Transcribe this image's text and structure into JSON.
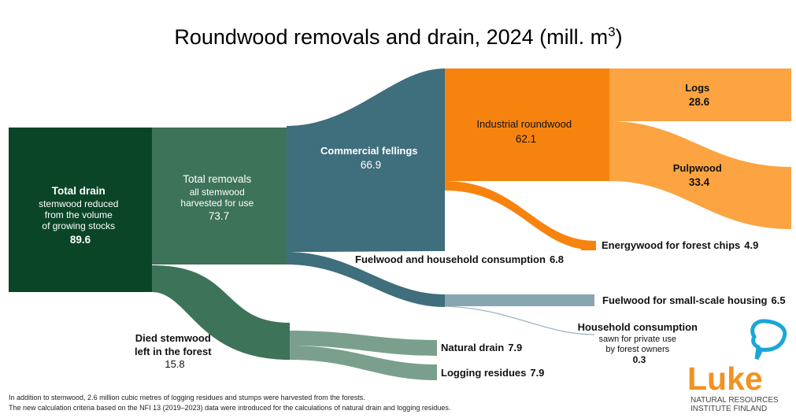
{
  "title": "Roundwood removals and drain, 2024 (mill. m",
  "title_superscript": "3",
  "title_close": ")",
  "nodes": {
    "total_drain": {
      "label": "Total drain",
      "desc": [
        "stemwood reduced",
        "from the volume",
        "of growing stocks"
      ],
      "value": "89.6"
    },
    "total_removals": {
      "label": "Total removals",
      "desc": [
        "all stemwood",
        "harvested for use"
      ],
      "value": "73.7"
    },
    "commercial_fellings": {
      "label": "Commercial fellings",
      "value": "66.9"
    },
    "industrial_roundwood": {
      "label": "Industrial roundwood",
      "value": "62.1"
    },
    "logs": {
      "label": "Logs",
      "value": "28.6"
    },
    "pulpwood": {
      "label": "Pulpwood",
      "value": "33.4"
    },
    "energywood": {
      "label": "Energywood for forest chips",
      "value": "4.9"
    },
    "fuelwood_household": {
      "label": "Fuelwood and household consumption",
      "value": "6.8"
    },
    "fuelwood_housing": {
      "label": "Fuelwood for small-scale housing",
      "value": "6.5"
    },
    "household_consumption": {
      "label": "Household consumption",
      "desc": [
        "sawn for private use",
        "by forest owners"
      ],
      "value": "0.3"
    },
    "died_stemwood": {
      "label": "Died stemwood",
      "desc": "left in the forest",
      "value": "15.8"
    },
    "natural_drain": {
      "label": "Natural drain",
      "value": "7.9"
    },
    "logging_residues": {
      "label": "Logging residues",
      "value": "7.9"
    }
  },
  "footnotes": [
    "In addition to stemwood, 2.6 million cubic metres of logging residues and stumps were harvested from the forests.",
    "The new calculation criteria based on the NFI 13 (2019–2023) data were introduced for the calculations of natural drain and logging residues."
  ],
  "logo": {
    "name": "Luke",
    "line1": "NATURAL RESOURCES",
    "line2": "INSTITUTE FINLAND"
  },
  "colors": {
    "dark_green": "#0b4528",
    "mid_green": "#3d7358",
    "light_green": "#7aa08d",
    "teal": "#3f6e7c",
    "light_teal": "#87a6b1",
    "orange": "#f7830f",
    "light_orange": "#fba441",
    "logo_orange": "#f39121",
    "logo_blue": "#1ba6d8"
  }
}
